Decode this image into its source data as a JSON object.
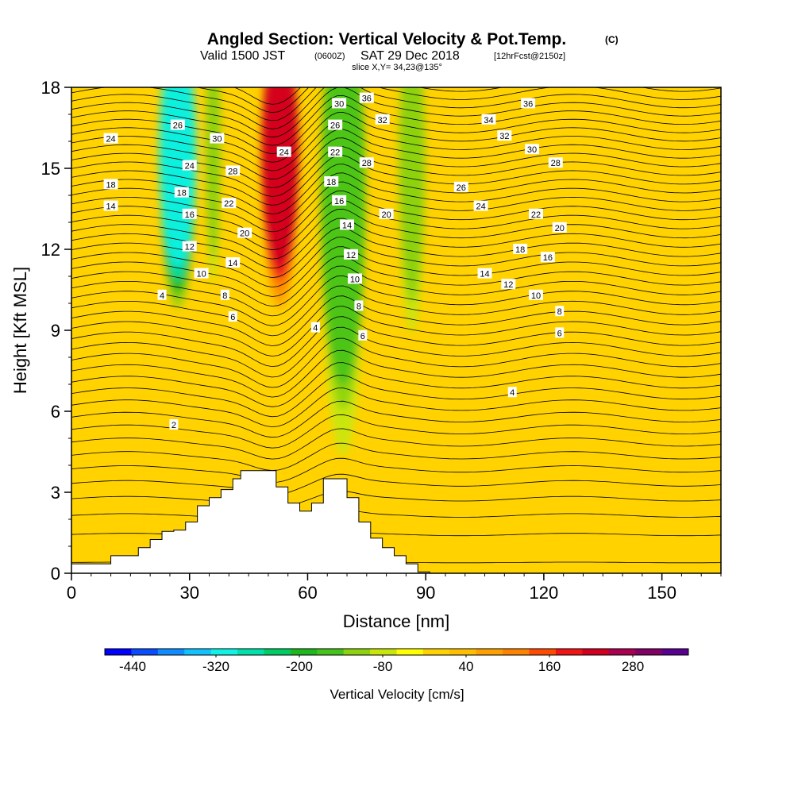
{
  "chart_data": {
    "type": "heatmap",
    "title": "Angled Section: Vertical Velocity & Pot.Temp.",
    "title_units": "(C)",
    "subtitle_parts": [
      "Valid 1500 JST",
      "(0600Z)",
      "SAT 29 Dec 2018",
      "[12hrFcst@2150z]"
    ],
    "slice_label": "slice X,Y= 34,23@135°",
    "xlabel": "Distance [nm]",
    "ylabel": "Height [Kft MSL]",
    "xlim": [
      0,
      165
    ],
    "ylim": [
      0,
      18
    ],
    "x_ticks": [
      "0",
      "30",
      "60",
      "90",
      "120",
      "150"
    ],
    "x_tick_values": [
      0,
      30,
      60,
      90,
      120,
      150
    ],
    "y_ticks": [
      "0",
      "3",
      "6",
      "9",
      "12",
      "15",
      "18"
    ],
    "y_tick_values": [
      0,
      3,
      6,
      9,
      12,
      15,
      18
    ],
    "colorbar": {
      "label": "Vertical Velocity [cm/s]",
      "tick_labels": [
        "-440",
        "-320",
        "-200",
        "-80",
        "40",
        "160",
        "280"
      ],
      "tick_values": [
        -440,
        -320,
        -200,
        -80,
        40,
        160,
        280
      ],
      "colors": [
        "#0000ff",
        "#0a4cff",
        "#0f8cff",
        "#12c2ff",
        "#0ff2e4",
        "#00e0a8",
        "#00cc66",
        "#1eb81e",
        "#46c31a",
        "#8cd20f",
        "#c8e60a",
        "#ffff00",
        "#ffd200",
        "#ffbe00",
        "#ffa000",
        "#ff8200",
        "#ff4b00",
        "#f01414",
        "#d0001e",
        "#aa0050",
        "#800064",
        "#5a0090"
      ],
      "bin_edges": [
        -480,
        -440,
        -400,
        -360,
        -320,
        -280,
        -240,
        -200,
        -160,
        -120,
        -80,
        -40,
        0,
        40,
        80,
        120,
        160,
        200,
        240,
        280,
        320,
        360
      ]
    },
    "velocity_features": [
      {
        "x_range": [
          22,
          32
        ],
        "y_range": [
          9,
          18
        ],
        "vv": -300
      },
      {
        "x_range": [
          34,
          38
        ],
        "y_range": [
          10,
          18
        ],
        "vv": -120
      },
      {
        "x_range": [
          48,
          58
        ],
        "y_range": [
          9,
          18
        ],
        "vv": 240
      },
      {
        "x_range": [
          63,
          75
        ],
        "y_range": [
          3,
          18
        ],
        "vv": -130
      },
      {
        "x_range": [
          83,
          90
        ],
        "y_range": [
          8,
          18
        ],
        "vv": -120
      }
    ],
    "terrain": {
      "x": [
        0,
        10,
        10,
        17,
        17,
        20,
        20,
        23,
        23,
        26,
        26,
        29,
        29,
        32,
        32,
        35,
        35,
        38,
        38,
        41,
        41,
        43,
        43,
        46,
        46,
        49,
        49,
        52,
        52,
        55,
        55,
        58,
        58,
        61,
        61,
        64,
        64,
        67,
        67,
        70,
        70,
        73,
        73,
        76,
        76,
        79,
        79,
        82,
        82,
        85,
        85,
        88,
        88,
        91,
        91,
        165
      ],
      "y": [
        0.35,
        0.35,
        0.65,
        0.65,
        0.95,
        0.95,
        1.25,
        1.25,
        1.55,
        1.55,
        1.6,
        1.6,
        1.9,
        1.9,
        2.5,
        2.5,
        2.8,
        2.8,
        3.1,
        3.1,
        3.5,
        3.5,
        3.8,
        3.8,
        3.8,
        3.8,
        3.8,
        3.8,
        3.2,
        3.2,
        2.6,
        2.6,
        2.3,
        2.3,
        2.6,
        2.6,
        3.5,
        3.5,
        3.5,
        3.5,
        2.8,
        2.8,
        1.9,
        1.9,
        1.3,
        1.3,
        0.95,
        0.95,
        0.65,
        0.65,
        0.35,
        0.35,
        0.05,
        0.05,
        0,
        0
      ]
    },
    "contour_labels": [
      {
        "text": "36",
        "x": 75,
        "y": 17.6
      },
      {
        "text": "36",
        "x": 116,
        "y": 17.4
      },
      {
        "text": "30",
        "x": 68,
        "y": 17.4
      },
      {
        "text": "34",
        "x": 106,
        "y": 16.8
      },
      {
        "text": "26",
        "x": 27,
        "y": 16.6
      },
      {
        "text": "26",
        "x": 67,
        "y": 16.6
      },
      {
        "text": "32",
        "x": 79,
        "y": 16.8
      },
      {
        "text": "32",
        "x": 110,
        "y": 16.2
      },
      {
        "text": "30",
        "x": 37,
        "y": 16.1
      },
      {
        "text": "24",
        "x": 10,
        "y": 16.1
      },
      {
        "text": "30",
        "x": 117,
        "y": 15.7
      },
      {
        "text": "24",
        "x": 54,
        "y": 15.6
      },
      {
        "text": "22",
        "x": 67,
        "y": 15.6
      },
      {
        "text": "24",
        "x": 30,
        "y": 15.1
      },
      {
        "text": "28",
        "x": 75,
        "y": 15.2
      },
      {
        "text": "28",
        "x": 123,
        "y": 15.2
      },
      {
        "text": "28",
        "x": 41,
        "y": 14.9
      },
      {
        "text": "18",
        "x": 66,
        "y": 14.5
      },
      {
        "text": "18",
        "x": 10,
        "y": 14.4
      },
      {
        "text": "26",
        "x": 99,
        "y": 14.3
      },
      {
        "text": "18",
        "x": 28,
        "y": 14.1
      },
      {
        "text": "16",
        "x": 68,
        "y": 13.8
      },
      {
        "text": "22",
        "x": 40,
        "y": 13.7
      },
      {
        "text": "24",
        "x": 104,
        "y": 13.6
      },
      {
        "text": "14",
        "x": 10,
        "y": 13.6
      },
      {
        "text": "16",
        "x": 30,
        "y": 13.3
      },
      {
        "text": "20",
        "x": 80,
        "y": 13.3
      },
      {
        "text": "22",
        "x": 118,
        "y": 13.3
      },
      {
        "text": "14",
        "x": 70,
        "y": 12.9
      },
      {
        "text": "20",
        "x": 44,
        "y": 12.6
      },
      {
        "text": "20",
        "x": 124,
        "y": 12.8
      },
      {
        "text": "12",
        "x": 30,
        "y": 12.1
      },
      {
        "text": "12",
        "x": 71,
        "y": 11.8
      },
      {
        "text": "18",
        "x": 114,
        "y": 12.0
      },
      {
        "text": "16",
        "x": 121,
        "y": 11.7
      },
      {
        "text": "14",
        "x": 41,
        "y": 11.5
      },
      {
        "text": "10",
        "x": 33,
        "y": 11.1
      },
      {
        "text": "14",
        "x": 105,
        "y": 11.1
      },
      {
        "text": "10",
        "x": 72,
        "y": 10.9
      },
      {
        "text": "12",
        "x": 111,
        "y": 10.7
      },
      {
        "text": "4",
        "x": 23,
        "y": 10.3
      },
      {
        "text": "8",
        "x": 39,
        "y": 10.3
      },
      {
        "text": "10",
        "x": 118,
        "y": 10.3
      },
      {
        "text": "8",
        "x": 73,
        "y": 9.9
      },
      {
        "text": "8",
        "x": 124,
        "y": 9.7
      },
      {
        "text": "6",
        "x": 41,
        "y": 9.5
      },
      {
        "text": "4",
        "x": 62,
        "y": 9.1
      },
      {
        "text": "6",
        "x": 74,
        "y": 8.8
      },
      {
        "text": "6",
        "x": 124,
        "y": 8.9
      },
      {
        "text": "4",
        "x": 112,
        "y": 6.7
      },
      {
        "text": "2",
        "x": 26,
        "y": 5.5
      }
    ]
  }
}
